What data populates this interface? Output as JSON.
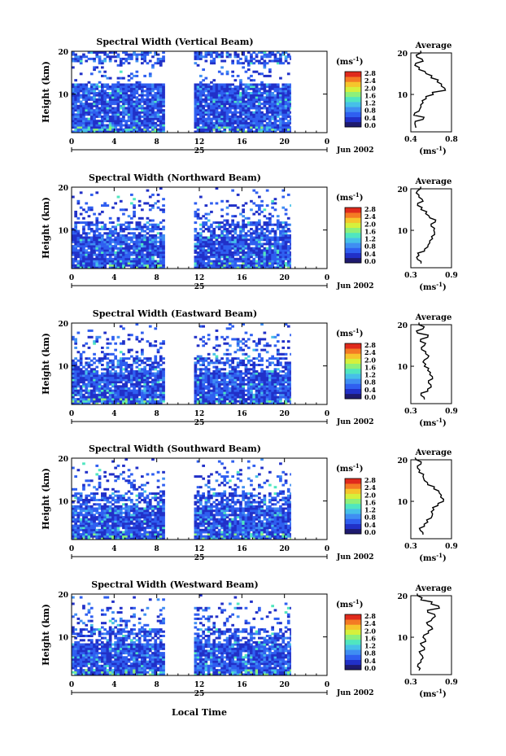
{
  "figure": {
    "x_axis_title": "Local Time",
    "day_label": "25",
    "month_label": "Jun 2002",
    "y_axis_title": "Height (km)",
    "unit_label": "(ms",
    "unit_exp": "-1",
    "avg_title": "Average",
    "colorbar_ticks": [
      "0.0",
      "0.4",
      "0.8",
      "1.2",
      "1.6",
      "2.0",
      "2.4",
      "2.8"
    ],
    "colormap": [
      "#1e1a6e",
      "#2130c8",
      "#2f5ff0",
      "#3f8ef2",
      "#46c0e8",
      "#50e6c0",
      "#8ef07a",
      "#d6f03c",
      "#f6c52c",
      "#f47a24",
      "#e02a1c"
    ]
  },
  "chart_data": [
    {
      "type": "heatmap",
      "title": "Spectral Width (Vertical Beam)",
      "x_ticks": [
        "0",
        "4",
        "8",
        "12",
        "16",
        "20",
        "0"
      ],
      "xlim": [
        0,
        24
      ],
      "y_ticks": [
        "20",
        "10"
      ],
      "ylim": [
        1,
        20
      ],
      "data_gap_hours": [
        8.8,
        11.4
      ],
      "data_end_hour": 20.6,
      "profile": {
        "title": "Average",
        "x_ticks": [
          "0.4",
          "0.8"
        ],
        "xlim": [
          0.4,
          0.8
        ],
        "heights_km": [
          2,
          3,
          4,
          5,
          6,
          7,
          8,
          9,
          10,
          11,
          12,
          13,
          14,
          15,
          16,
          17,
          18,
          19,
          20
        ],
        "values": [
          0.45,
          0.44,
          0.52,
          0.43,
          0.48,
          0.5,
          0.52,
          0.55,
          0.62,
          0.74,
          0.7,
          0.66,
          0.6,
          0.55,
          0.48,
          0.44,
          0.52,
          0.46,
          0.5
        ]
      }
    },
    {
      "type": "heatmap",
      "title": "Spectral Width (Northward Beam)",
      "x_ticks": [
        "0",
        "4",
        "8",
        "12",
        "16",
        "20",
        "0"
      ],
      "xlim": [
        0,
        24
      ],
      "y_ticks": [
        "20",
        "10"
      ],
      "ylim": [
        1,
        20
      ],
      "data_gap_hours": [
        8.8,
        11.4
      ],
      "data_end_hour": 20.6,
      "profile": {
        "title": "Average",
        "x_ticks": [
          "0.3",
          "0.9"
        ],
        "xlim": [
          0.3,
          0.9
        ],
        "heights_km": [
          2,
          3,
          4,
          5,
          6,
          7,
          8,
          9,
          10,
          11,
          12,
          13,
          14,
          15,
          16,
          17,
          18,
          19,
          20
        ],
        "values": [
          0.45,
          0.4,
          0.42,
          0.5,
          0.55,
          0.58,
          0.62,
          0.65,
          0.64,
          0.6,
          0.66,
          0.58,
          0.52,
          0.45,
          0.4,
          0.48,
          0.42,
          0.38,
          0.44
        ]
      }
    },
    {
      "type": "heatmap",
      "title": "Spectral Width (Eastward Beam)",
      "x_ticks": [
        "0",
        "4",
        "8",
        "12",
        "16",
        "20",
        "0"
      ],
      "xlim": [
        0,
        24
      ],
      "y_ticks": [
        "20",
        "10"
      ],
      "ylim": [
        1,
        20
      ],
      "data_gap_hours": [
        8.8,
        11.4
      ],
      "data_end_hour": 20.6,
      "profile": {
        "title": "Average",
        "x_ticks": [
          "0.3",
          "0.9"
        ],
        "xlim": [
          0.3,
          0.9
        ],
        "heights_km": [
          2,
          3,
          4,
          5,
          6,
          7,
          8,
          9,
          10,
          11,
          12,
          13,
          14,
          15,
          16,
          17,
          18,
          19,
          20
        ],
        "values": [
          0.5,
          0.45,
          0.55,
          0.6,
          0.56,
          0.62,
          0.58,
          0.55,
          0.5,
          0.48,
          0.55,
          0.52,
          0.46,
          0.5,
          0.44,
          0.55,
          0.4,
          0.48,
          0.42
        ]
      }
    },
    {
      "type": "heatmap",
      "title": "Spectral Width (Southward Beam)",
      "x_ticks": [
        "0",
        "4",
        "8",
        "12",
        "16",
        "20",
        "0"
      ],
      "xlim": [
        0,
        24
      ],
      "y_ticks": [
        "20",
        "10"
      ],
      "ylim": [
        1,
        20
      ],
      "data_gap_hours": [
        8.8,
        11.4
      ],
      "data_end_hour": 20.6,
      "profile": {
        "title": "Average",
        "x_ticks": [
          "0.3",
          "0.9"
        ],
        "xlim": [
          0.3,
          0.9
        ],
        "heights_km": [
          2,
          3,
          4,
          5,
          6,
          7,
          8,
          9,
          10,
          11,
          12,
          13,
          14,
          15,
          16,
          17,
          18,
          19,
          20
        ],
        "values": [
          0.48,
          0.44,
          0.5,
          0.55,
          0.6,
          0.62,
          0.64,
          0.7,
          0.78,
          0.74,
          0.72,
          0.64,
          0.55,
          0.5,
          0.48,
          0.42,
          0.4,
          0.45,
          0.38
        ]
      }
    },
    {
      "type": "heatmap",
      "title": "Spectral Width (Westward Beam)",
      "x_ticks": [
        "0",
        "4",
        "8",
        "12",
        "16",
        "20",
        "0"
      ],
      "xlim": [
        0,
        24
      ],
      "y_ticks": [
        "20",
        "10"
      ],
      "ylim": [
        1,
        20
      ],
      "data_gap_hours": [
        8.8,
        11.4
      ],
      "data_end_hour": 20.6,
      "profile": {
        "title": "Average",
        "x_ticks": [
          "0.3",
          "0.9"
        ],
        "xlim": [
          0.3,
          0.9
        ],
        "heights_km": [
          2,
          3,
          4,
          5,
          6,
          7,
          8,
          9,
          10,
          11,
          12,
          13,
          14,
          15,
          16,
          17,
          18,
          19,
          20
        ],
        "values": [
          0.42,
          0.4,
          0.45,
          0.48,
          0.44,
          0.5,
          0.46,
          0.52,
          0.48,
          0.56,
          0.62,
          0.55,
          0.6,
          0.66,
          0.55,
          0.72,
          0.6,
          0.45,
          0.4
        ]
      }
    }
  ]
}
